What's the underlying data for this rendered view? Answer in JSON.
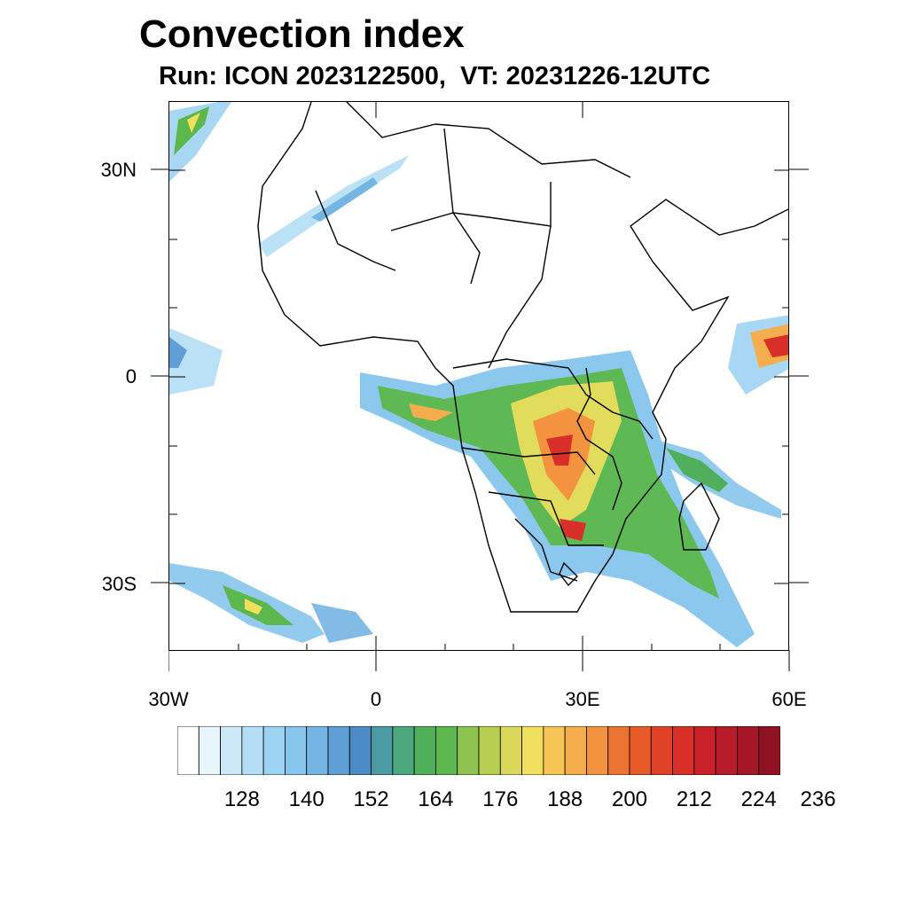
{
  "title": "Convection index",
  "subtitle": "Run: ICON 2023122500,  VT: 20231226-12UTC",
  "axes": {
    "lat_labels": [
      "30N",
      "0",
      "30S"
    ],
    "lon_labels": [
      "30W",
      "0",
      "30E",
      "60E"
    ]
  },
  "colorbar": {
    "colors": [
      "#ffffff",
      "#e8f5fc",
      "#cde9f8",
      "#b4def5",
      "#9dd3f2",
      "#86c5ec",
      "#74b5e3",
      "#5f9fd6",
      "#4b8bc6",
      "#4c9aa3",
      "#4ca77c",
      "#4faf5a",
      "#5cb84c",
      "#8ec34f",
      "#b6cf50",
      "#dbd75a",
      "#f1e05d",
      "#f6c556",
      "#f5ad4d",
      "#f3923f",
      "#ec7432",
      "#e65a2a",
      "#df4227",
      "#d82f28",
      "#c92029",
      "#b71a28",
      "#a51726",
      "#8f1222"
    ],
    "labels": [
      "128",
      "140",
      "152",
      "164",
      "176",
      "188",
      "200",
      "212",
      "224",
      "236"
    ]
  },
  "colors": {
    "land_border": "#000000",
    "low": "#9dd3f2",
    "mid": "#4faf5a",
    "high": "#f1e05d",
    "peak": "#d82f28"
  }
}
